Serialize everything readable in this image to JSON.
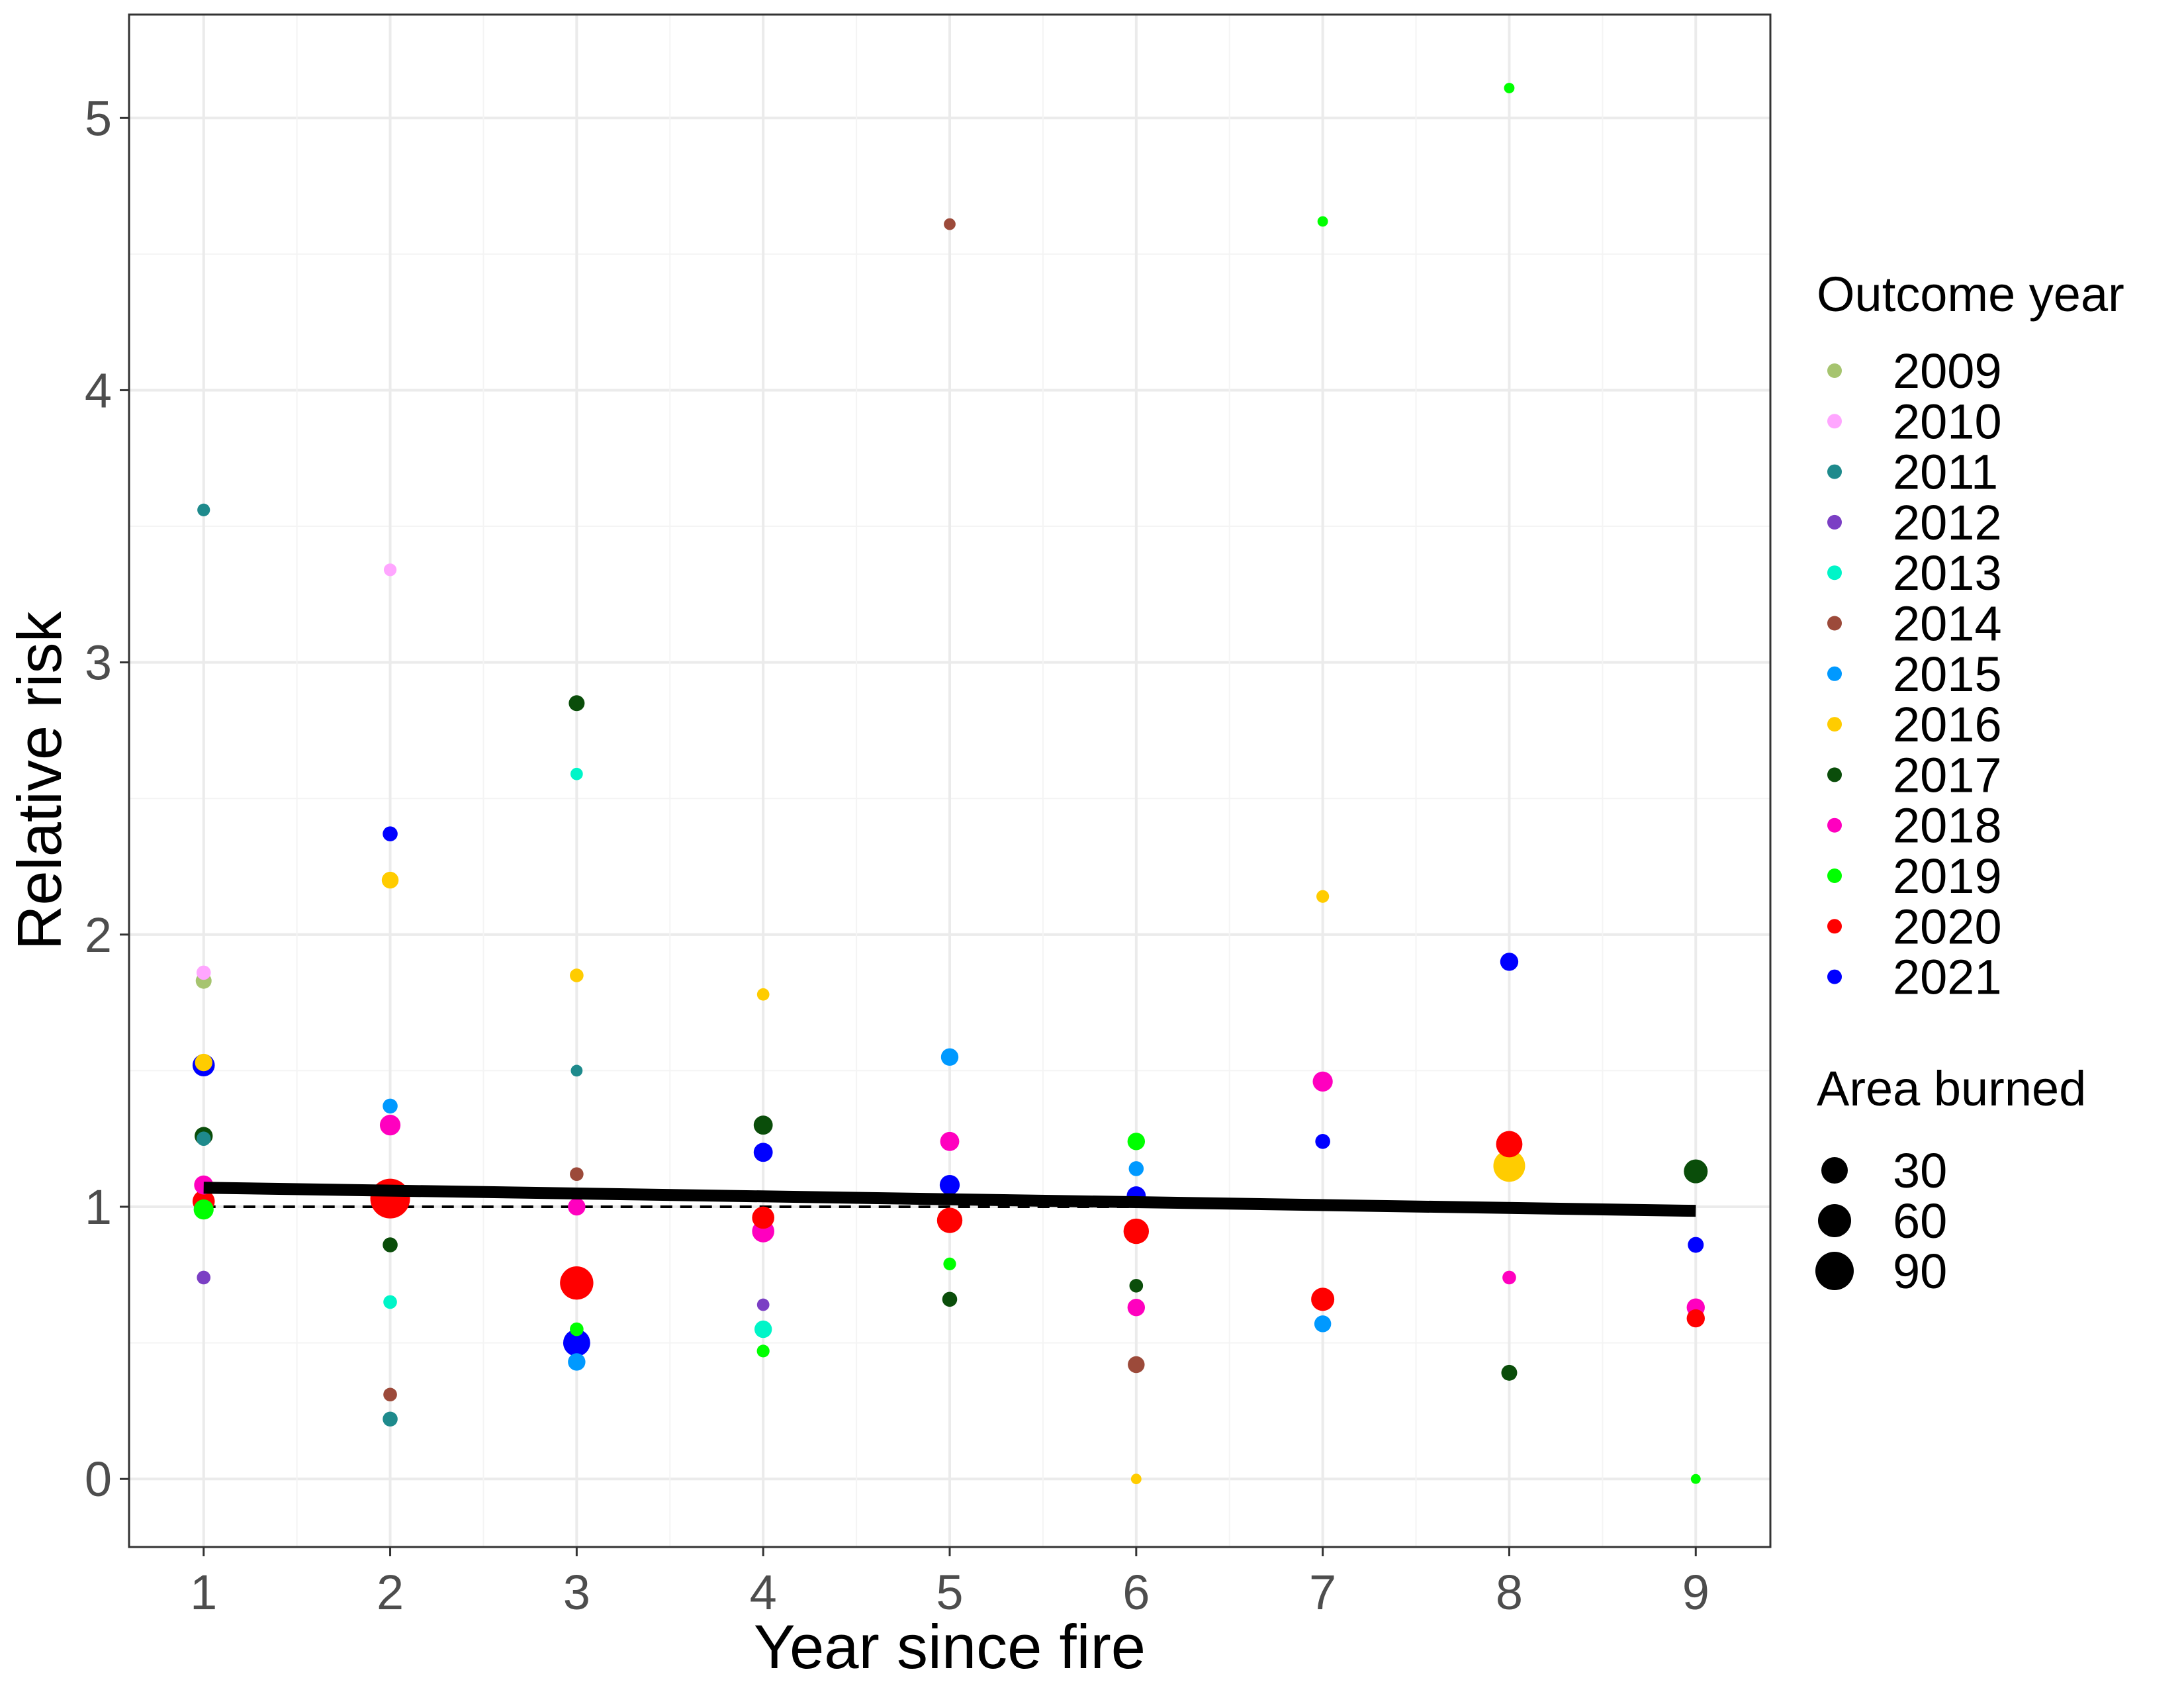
{
  "chart_data": {
    "type": "scatter",
    "title": "",
    "xlabel": "Year since fire",
    "ylabel": "Relative risk",
    "xlim": [
      0.6,
      9.4
    ],
    "ylim": [
      -0.25,
      5.38
    ],
    "x_ticks": [
      1,
      2,
      3,
      4,
      5,
      6,
      7,
      8,
      9
    ],
    "y_ticks": [
      0,
      1,
      2,
      3,
      4,
      5
    ],
    "grid": true,
    "legend_position": "right",
    "color_legend": {
      "title": "Outcome year",
      "entries": [
        {
          "label": "2009",
          "color": "#A6C46F"
        },
        {
          "label": "2010",
          "color": "#FFA6FF"
        },
        {
          "label": "2011",
          "color": "#1E8A8C"
        },
        {
          "label": "2012",
          "color": "#7B3FC4"
        },
        {
          "label": "2013",
          "color": "#00F5C8"
        },
        {
          "label": "2014",
          "color": "#9C4A3A"
        },
        {
          "label": "2015",
          "color": "#0099FF"
        },
        {
          "label": "2016",
          "color": "#FFCC00"
        },
        {
          "label": "2017",
          "color": "#0A4D0A"
        },
        {
          "label": "2018",
          "color": "#FF00BF"
        },
        {
          "label": "2019",
          "color": "#00FF00"
        },
        {
          "label": "2020",
          "color": "#FF0000"
        },
        {
          "label": "2021",
          "color": "#0000FF"
        }
      ]
    },
    "size_legend": {
      "title": "Area burned",
      "entries": [
        {
          "label": "30",
          "value": 30
        },
        {
          "label": "60",
          "value": 60
        },
        {
          "label": "90",
          "value": 90
        }
      ]
    },
    "trend_line": {
      "x": [
        1,
        9
      ],
      "y": [
        1.07,
        0.985
      ],
      "color": "#000000"
    },
    "reference_line": {
      "y": 1,
      "style": "dashed",
      "color": "#000000"
    },
    "series": [
      {
        "name": "2009",
        "points": [
          {
            "x": 1,
            "y": 1.83,
            "area": 25
          }
        ]
      },
      {
        "name": "2010",
        "points": [
          {
            "x": 1,
            "y": 1.86,
            "area": 20
          },
          {
            "x": 2,
            "y": 3.34,
            "area": 15
          }
        ]
      },
      {
        "name": "2011",
        "points": [
          {
            "x": 1,
            "y": 3.56,
            "area": 15
          },
          {
            "x": 1,
            "y": 1.25,
            "area": 20
          },
          {
            "x": 2,
            "y": 0.22,
            "area": 22
          },
          {
            "x": 3,
            "y": 1.5,
            "area": 12
          }
        ]
      },
      {
        "name": "2012",
        "points": [
          {
            "x": 1,
            "y": 0.74,
            "area": 18
          },
          {
            "x": 4,
            "y": 0.64,
            "area": 14
          }
        ]
      },
      {
        "name": "2013",
        "points": [
          {
            "x": 2,
            "y": 0.65,
            "area": 18
          },
          {
            "x": 3,
            "y": 2.59,
            "area": 14
          },
          {
            "x": 4,
            "y": 0.55,
            "area": 30
          }
        ]
      },
      {
        "name": "2014",
        "points": [
          {
            "x": 2,
            "y": 0.31,
            "area": 18
          },
          {
            "x": 3,
            "y": 1.12,
            "area": 18
          },
          {
            "x": 5,
            "y": 4.61,
            "area": 12
          },
          {
            "x": 6,
            "y": 0.42,
            "area": 28
          }
        ]
      },
      {
        "name": "2015",
        "points": [
          {
            "x": 2,
            "y": 1.37,
            "area": 22
          },
          {
            "x": 3,
            "y": 0.43,
            "area": 30
          },
          {
            "x": 5,
            "y": 1.55,
            "area": 30
          },
          {
            "x": 6,
            "y": 1.14,
            "area": 22
          },
          {
            "x": 7,
            "y": 0.57,
            "area": 28
          }
        ]
      },
      {
        "name": "2016",
        "points": [
          {
            "x": 1,
            "y": 1.53,
            "area": 30
          },
          {
            "x": 2,
            "y": 2.2,
            "area": 28
          },
          {
            "x": 3,
            "y": 1.85,
            "area": 18
          },
          {
            "x": 4,
            "y": 1.78,
            "area": 14
          },
          {
            "x": 6,
            "y": 0.0,
            "area": 8
          },
          {
            "x": 7,
            "y": 2.14,
            "area": 15
          },
          {
            "x": 8,
            "y": 1.15,
            "area": 75
          }
        ]
      },
      {
        "name": "2017",
        "points": [
          {
            "x": 1,
            "y": 1.26,
            "area": 32
          },
          {
            "x": 2,
            "y": 0.86,
            "area": 22
          },
          {
            "x": 3,
            "y": 2.85,
            "area": 25
          },
          {
            "x": 4,
            "y": 1.3,
            "area": 35
          },
          {
            "x": 5,
            "y": 0.66,
            "area": 22
          },
          {
            "x": 6,
            "y": 0.71,
            "area": 18
          },
          {
            "x": 8,
            "y": 0.39,
            "area": 25
          },
          {
            "x": 9,
            "y": 1.13,
            "area": 50
          }
        ]
      },
      {
        "name": "2018",
        "points": [
          {
            "x": 1,
            "y": 1.08,
            "area": 35
          },
          {
            "x": 2,
            "y": 1.3,
            "area": 40
          },
          {
            "x": 3,
            "y": 1.0,
            "area": 30
          },
          {
            "x": 4,
            "y": 0.91,
            "area": 45
          },
          {
            "x": 5,
            "y": 1.24,
            "area": 35
          },
          {
            "x": 6,
            "y": 0.63,
            "area": 30
          },
          {
            "x": 7,
            "y": 1.46,
            "area": 38
          },
          {
            "x": 8,
            "y": 0.74,
            "area": 18
          },
          {
            "x": 9,
            "y": 0.63,
            "area": 32
          }
        ]
      },
      {
        "name": "2019",
        "points": [
          {
            "x": 1,
            "y": 0.99,
            "area": 38
          },
          {
            "x": 3,
            "y": 0.55,
            "area": 18
          },
          {
            "x": 4,
            "y": 0.47,
            "area": 15
          },
          {
            "x": 5,
            "y": 0.79,
            "area": 15
          },
          {
            "x": 6,
            "y": 1.24,
            "area": 30
          },
          {
            "x": 7,
            "y": 4.62,
            "area": 8
          },
          {
            "x": 8,
            "y": 5.11,
            "area": 8
          },
          {
            "x": 9,
            "y": 0.0,
            "area": 6
          }
        ]
      },
      {
        "name": "2020",
        "points": [
          {
            "x": 1,
            "y": 1.02,
            "area": 45
          },
          {
            "x": 2,
            "y": 1.03,
            "area": 100
          },
          {
            "x": 3,
            "y": 0.72,
            "area": 80
          },
          {
            "x": 4,
            "y": 0.96,
            "area": 45
          },
          {
            "x": 5,
            "y": 0.95,
            "area": 55
          },
          {
            "x": 6,
            "y": 0.91,
            "area": 55
          },
          {
            "x": 7,
            "y": 0.66,
            "area": 48
          },
          {
            "x": 8,
            "y": 1.23,
            "area": 58
          },
          {
            "x": 9,
            "y": 0.59,
            "area": 32
          }
        ]
      },
      {
        "name": "2021",
        "points": [
          {
            "x": 1,
            "y": 1.52,
            "area": 45
          },
          {
            "x": 2,
            "y": 2.37,
            "area": 22
          },
          {
            "x": 3,
            "y": 0.5,
            "area": 60
          },
          {
            "x": 4,
            "y": 1.2,
            "area": 35
          },
          {
            "x": 5,
            "y": 1.08,
            "area": 38
          },
          {
            "x": 6,
            "y": 1.04,
            "area": 35
          },
          {
            "x": 7,
            "y": 1.24,
            "area": 22
          },
          {
            "x": 8,
            "y": 1.9,
            "area": 32
          },
          {
            "x": 9,
            "y": 0.86,
            "area": 25
          }
        ]
      }
    ]
  }
}
